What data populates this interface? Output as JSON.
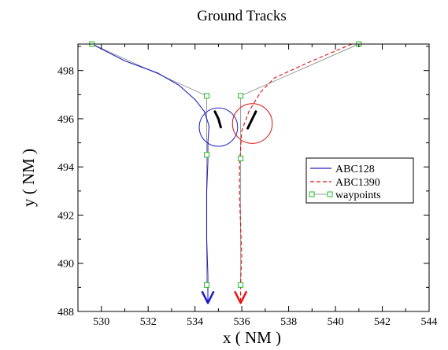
{
  "chart_data": {
    "type": "line",
    "title": "Ground Tracks",
    "xlabel": "x ( NM )",
    "ylabel": "y ( NM )",
    "xlim": [
      529,
      544
    ],
    "ylim": [
      488,
      499.1
    ],
    "xticks": [
      530,
      532,
      534,
      536,
      538,
      540,
      542,
      544
    ],
    "yticks": [
      488,
      490,
      492,
      494,
      496,
      498
    ],
    "grid": false,
    "legend_position": "right",
    "series": [
      {
        "name": "ABC128",
        "color": "#2020c0",
        "dash": "solid",
        "x": [
          529.6,
          531.0,
          532.4,
          533.3,
          534.0,
          534.4,
          534.6,
          534.55,
          534.55,
          534.5,
          534.5,
          534.55,
          534.55
        ],
        "y": [
          499.1,
          498.4,
          497.9,
          497.4,
          496.8,
          496.3,
          495.7,
          495.0,
          494.2,
          493.0,
          491.0,
          489.5,
          488.35
        ]
      },
      {
        "name": "ABC1390",
        "color": "#dd1111",
        "dash": "dashed",
        "x": [
          540.7,
          539.0,
          537.4,
          536.8,
          536.3,
          536.0,
          535.95,
          535.9,
          535.9,
          535.95,
          536.0,
          535.95,
          535.95
        ],
        "y": [
          499.1,
          498.4,
          497.7,
          497.1,
          496.3,
          495.5,
          494.8,
          494.0,
          492.8,
          491.5,
          490.3,
          489.2,
          488.35
        ]
      },
      {
        "name": "waypoints",
        "color": "#22bb22",
        "line_color": "#999999",
        "marker": "square",
        "segments": [
          {
            "x": [
              529.6,
              534.5,
              534.5,
              534.5
            ],
            "y": [
              499.1,
              496.95,
              494.5,
              489.1
            ]
          },
          {
            "x": [
              541.0,
              535.95,
              535.95,
              535.95
            ],
            "y": [
              499.1,
              496.95,
              494.35,
              489.1
            ]
          }
        ]
      }
    ],
    "annotations": {
      "circles": [
        {
          "cx": 535.0,
          "cy": 495.65,
          "r_nm": 0.82,
          "color": "#2020c0"
        },
        {
          "cx": 536.45,
          "cy": 495.8,
          "r_nm": 0.85,
          "color": "#dd1111"
        }
      ],
      "black_segments": [
        {
          "x": [
            534.85,
            535.0,
            535.1
          ],
          "y": [
            496.3,
            496.0,
            495.65
          ]
        },
        {
          "x": [
            536.25,
            536.45,
            536.6
          ],
          "y": [
            495.6,
            496.0,
            496.3
          ]
        }
      ],
      "arrows": [
        {
          "x": 534.55,
          "y": 488.35,
          "color": "#1a1acc"
        },
        {
          "x": 535.95,
          "y": 488.35,
          "color": "#ee1111"
        }
      ]
    }
  }
}
